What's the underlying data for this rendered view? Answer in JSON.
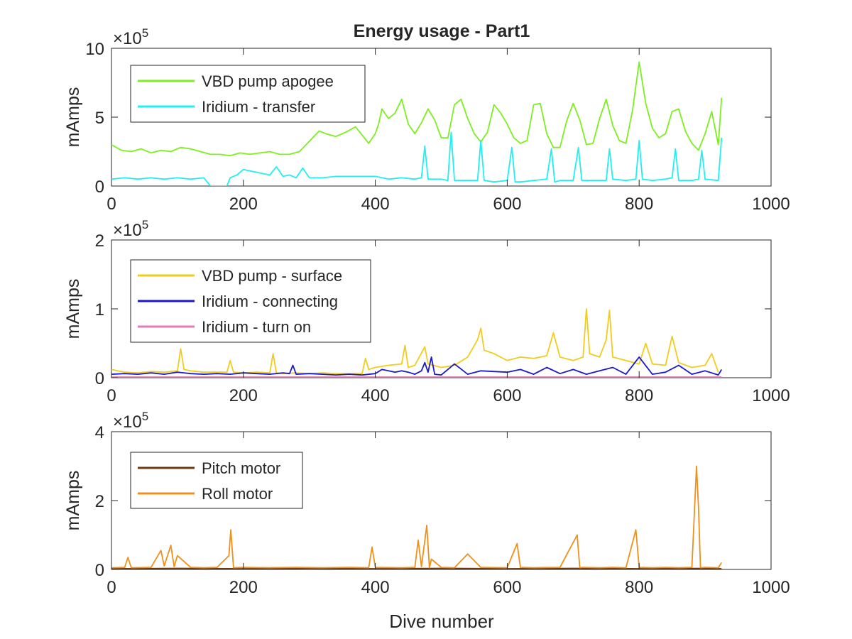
{
  "figure": {
    "title": "Energy usage - Part1",
    "xlabel": "Dive number",
    "exponent_base": "×10",
    "exponent_power": "5"
  },
  "chart_data": [
    {
      "type": "line",
      "title": "Energy usage - Part1",
      "xlabel": "",
      "ylabel": "mAmps",
      "xlim": [
        0,
        1000
      ],
      "ylim": [
        0,
        10
      ],
      "y_multiplier": "×10^5",
      "xticks": [
        0,
        200,
        400,
        600,
        800,
        1000
      ],
      "yticks": [
        0,
        5,
        10
      ],
      "grid": false,
      "legend_position": "top-left",
      "series": [
        {
          "name": "VBD pump apogee",
          "color": "#7cf01e",
          "x": [
            0,
            15,
            30,
            45,
            60,
            75,
            90,
            105,
            120,
            135,
            150,
            165,
            180,
            195,
            210,
            225,
            240,
            255,
            270,
            285,
            295,
            305,
            315,
            325,
            340,
            355,
            370,
            380,
            390,
            400,
            405,
            410,
            420,
            430,
            440,
            450,
            460,
            470,
            480,
            490,
            500,
            510,
            520,
            530,
            540,
            550,
            560,
            570,
            580,
            590,
            600,
            610,
            620,
            630,
            640,
            650,
            660,
            670,
            680,
            690,
            700,
            710,
            720,
            730,
            740,
            750,
            760,
            770,
            780,
            790,
            800,
            810,
            820,
            830,
            840,
            850,
            860,
            870,
            880,
            890,
            900,
            910,
            920,
            925
          ],
          "values": [
            3.0,
            2.6,
            2.5,
            2.7,
            2.4,
            2.6,
            2.5,
            2.8,
            2.7,
            2.5,
            2.3,
            2.3,
            2.2,
            2.4,
            2.3,
            2.4,
            2.5,
            2.3,
            2.3,
            2.5,
            3.0,
            3.5,
            4.0,
            3.8,
            3.6,
            3.9,
            4.3,
            3.7,
            3.1,
            3.8,
            4.5,
            5.6,
            4.9,
            5.3,
            6.3,
            4.5,
            3.8,
            4.6,
            5.6,
            4.8,
            3.5,
            3.5,
            5.9,
            6.3,
            4.9,
            3.8,
            3.2,
            3.9,
            5.9,
            5.3,
            4.5,
            3.5,
            3.1,
            3.3,
            5.9,
            6.0,
            3.8,
            2.8,
            2.8,
            4.7,
            6.0,
            4.8,
            3.0,
            3.1,
            4.9,
            6.3,
            4.4,
            3.3,
            3.1,
            5.5,
            9.0,
            6.0,
            4.2,
            3.5,
            3.8,
            5.4,
            5.6,
            4.0,
            3.1,
            2.6,
            3.8,
            5.4,
            3.0,
            6.4
          ]
        },
        {
          "name": "Iridium - transfer",
          "color": "#21f0f0",
          "x": [
            0,
            20,
            40,
            60,
            80,
            100,
            120,
            140,
            150,
            175,
            180,
            190,
            200,
            210,
            220,
            240,
            250,
            260,
            270,
            280,
            290,
            300,
            320,
            340,
            360,
            380,
            400,
            420,
            440,
            460,
            470,
            475,
            480,
            500,
            510,
            515,
            520,
            540,
            555,
            560,
            565,
            580,
            600,
            607,
            612,
            620,
            640,
            660,
            667,
            672,
            680,
            700,
            708,
            713,
            720,
            740,
            750,
            755,
            760,
            780,
            795,
            800,
            805,
            820,
            840,
            850,
            855,
            860,
            880,
            890,
            895,
            900,
            920,
            925
          ],
          "values": [
            0.5,
            0.6,
            0.5,
            0.6,
            0.5,
            0.6,
            0.5,
            0.6,
            0.0,
            0.0,
            0.6,
            0.8,
            1.2,
            1.1,
            1.0,
            0.8,
            1.4,
            0.7,
            0.8,
            0.6,
            1.3,
            0.6,
            0.6,
            0.7,
            0.7,
            0.7,
            0.7,
            0.5,
            0.6,
            0.5,
            0.6,
            2.9,
            0.5,
            0.5,
            0.4,
            3.9,
            0.4,
            0.4,
            0.4,
            3.3,
            0.4,
            0.3,
            0.4,
            2.8,
            0.3,
            0.3,
            0.4,
            0.5,
            2.7,
            0.3,
            0.4,
            0.4,
            2.8,
            0.4,
            0.4,
            0.4,
            0.4,
            2.7,
            0.5,
            0.4,
            0.5,
            3.3,
            0.5,
            0.4,
            0.5,
            0.6,
            2.7,
            0.4,
            0.4,
            0.5,
            2.6,
            0.5,
            0.4,
            3.5
          ]
        }
      ]
    },
    {
      "type": "line",
      "title": "",
      "xlabel": "",
      "ylabel": "mAmps",
      "xlim": [
        0,
        1000
      ],
      "ylim": [
        0,
        2
      ],
      "y_multiplier": "×10^5",
      "xticks": [
        0,
        200,
        400,
        600,
        800,
        1000
      ],
      "yticks": [
        0,
        1,
        2
      ],
      "grid": false,
      "legend_position": "top-left",
      "series": [
        {
          "name": "VBD pump - surface",
          "color": "#f2cc1c",
          "x": [
            0,
            20,
            40,
            60,
            80,
            100,
            105,
            110,
            120,
            140,
            160,
            175,
            180,
            185,
            200,
            220,
            240,
            245,
            250,
            260,
            280,
            300,
            320,
            340,
            360,
            380,
            385,
            390,
            400,
            420,
            440,
            445,
            450,
            460,
            475,
            480,
            500,
            520,
            540,
            555,
            560,
            565,
            580,
            600,
            620,
            640,
            660,
            670,
            680,
            700,
            715,
            720,
            725,
            740,
            750,
            755,
            760,
            780,
            800,
            810,
            820,
            840,
            850,
            860,
            880,
            900,
            910,
            920
          ],
          "values": [
            0.12,
            0.08,
            0.07,
            0.09,
            0.08,
            0.1,
            0.42,
            0.12,
            0.1,
            0.08,
            0.08,
            0.08,
            0.25,
            0.08,
            0.07,
            0.08,
            0.07,
            0.35,
            0.07,
            0.06,
            0.07,
            0.06,
            0.07,
            0.06,
            0.06,
            0.06,
            0.28,
            0.12,
            0.15,
            0.18,
            0.2,
            0.47,
            0.15,
            0.18,
            0.45,
            0.2,
            0.15,
            0.18,
            0.3,
            0.55,
            0.72,
            0.4,
            0.35,
            0.25,
            0.3,
            0.28,
            0.32,
            0.65,
            0.3,
            0.25,
            0.3,
            1.0,
            0.35,
            0.3,
            0.55,
            0.98,
            0.3,
            0.25,
            0.2,
            0.5,
            0.2,
            0.18,
            0.6,
            0.22,
            0.15,
            0.18,
            0.35,
            0.08
          ]
        },
        {
          "name": "Iridium - connecting",
          "color": "#1a1acc",
          "x": [
            0,
            20,
            40,
            60,
            80,
            100,
            120,
            140,
            160,
            180,
            200,
            220,
            240,
            260,
            270,
            275,
            280,
            300,
            320,
            340,
            360,
            380,
            400,
            410,
            420,
            430,
            440,
            450,
            460,
            470,
            475,
            480,
            485,
            490,
            500,
            520,
            540,
            560,
            600,
            620,
            640,
            660,
            680,
            700,
            720,
            740,
            760,
            780,
            800,
            820,
            840,
            860,
            880,
            900,
            920,
            925
          ],
          "values": [
            0.05,
            0.06,
            0.05,
            0.07,
            0.05,
            0.08,
            0.06,
            0.05,
            0.06,
            0.05,
            0.07,
            0.06,
            0.05,
            0.07,
            0.06,
            0.18,
            0.05,
            0.06,
            0.05,
            0.04,
            0.05,
            0.04,
            0.06,
            0.12,
            0.1,
            0.08,
            0.1,
            0.08,
            0.05,
            0.1,
            0.22,
            0.08,
            0.3,
            0.05,
            0.04,
            0.2,
            0.05,
            0.1,
            0.08,
            0.12,
            0.05,
            0.15,
            0.06,
            0.12,
            0.05,
            0.1,
            0.15,
            0.05,
            0.3,
            0.05,
            0.08,
            0.18,
            0.05,
            0.1,
            0.04,
            0.12
          ]
        },
        {
          "name": "Iridium - turn on",
          "color": "#e67ab8",
          "x": [
            0,
            100,
            200,
            300,
            400,
            500,
            600,
            700,
            800,
            900,
            925
          ],
          "values": [
            0.01,
            0.01,
            0.01,
            0.01,
            0.01,
            0.01,
            0.01,
            0.01,
            0.01,
            0.01,
            0.01
          ]
        }
      ]
    },
    {
      "type": "line",
      "title": "",
      "xlabel": "Dive number",
      "ylabel": "mAmps",
      "xlim": [
        0,
        1000
      ],
      "ylim": [
        0,
        4
      ],
      "y_multiplier": "×10^5",
      "xticks": [
        0,
        200,
        400,
        600,
        800,
        1000
      ],
      "yticks": [
        0,
        2,
        4
      ],
      "grid": false,
      "legend_position": "top-left",
      "series": [
        {
          "name": "Pitch motor",
          "color": "#6e3a12",
          "x": [
            0,
            100,
            200,
            300,
            400,
            500,
            600,
            700,
            800,
            900,
            925
          ],
          "values": [
            0.02,
            0.03,
            0.02,
            0.03,
            0.02,
            0.03,
            0.02,
            0.03,
            0.02,
            0.03,
            0.02
          ]
        },
        {
          "name": "Roll motor",
          "color": "#f0901c",
          "x": [
            0,
            20,
            25,
            30,
            60,
            75,
            80,
            90,
            95,
            100,
            120,
            140,
            160,
            178,
            181,
            185,
            200,
            240,
            280,
            320,
            360,
            390,
            395,
            400,
            440,
            460,
            465,
            470,
            478,
            482,
            485,
            500,
            520,
            540,
            560,
            600,
            615,
            620,
            640,
            680,
            706,
            710,
            714,
            740,
            760,
            780,
            795,
            800,
            820,
            840,
            860,
            880,
            887,
            890,
            893,
            900,
            920,
            925
          ],
          "values": [
            0.05,
            0.06,
            0.35,
            0.05,
            0.06,
            0.55,
            0.1,
            0.7,
            0.08,
            0.4,
            0.06,
            0.05,
            0.06,
            0.4,
            1.15,
            0.05,
            0.06,
            0.05,
            0.06,
            0.05,
            0.06,
            0.05,
            0.65,
            0.06,
            0.05,
            0.06,
            0.85,
            0.08,
            1.28,
            0.05,
            0.3,
            0.06,
            0.05,
            0.45,
            0.06,
            0.05,
            0.75,
            0.06,
            0.05,
            0.06,
            1.0,
            0.05,
            0.06,
            0.05,
            0.06,
            0.05,
            1.15,
            0.06,
            0.05,
            0.06,
            0.05,
            0.06,
            3.0,
            1.8,
            0.05,
            0.06,
            0.05,
            0.2
          ]
        }
      ]
    }
  ]
}
